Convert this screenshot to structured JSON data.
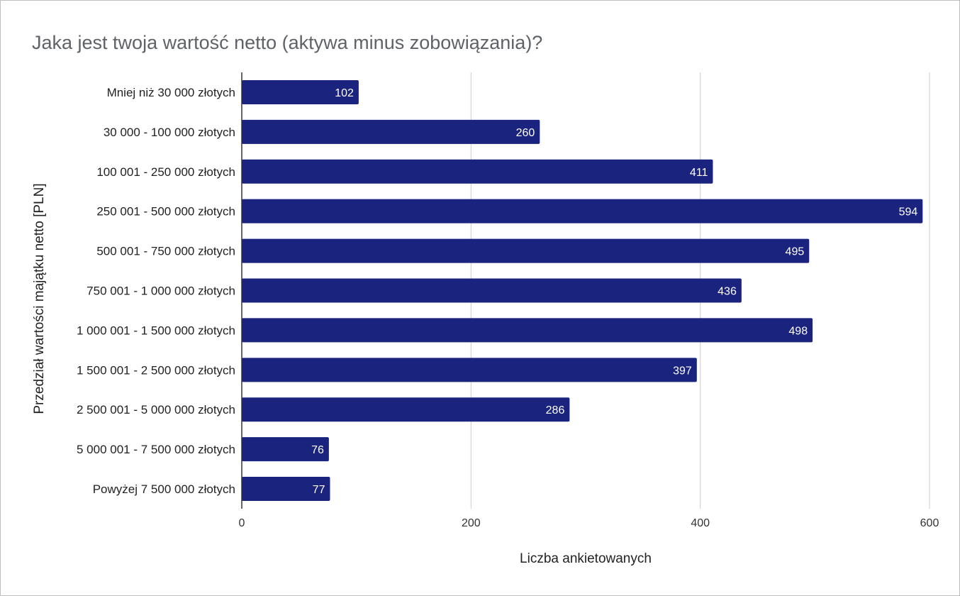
{
  "chart_data": {
    "type": "bar",
    "orientation": "horizontal",
    "title": "Jaka jest twoja wartość netto (aktywa minus zobowiązania)?",
    "xlabel": "Liczba ankietowanych",
    "ylabel": "Przedział wartości majątku netto [PLN]",
    "categories": [
      "Mniej niż 30 000 złotych",
      "30 000 - 100 000 złotych",
      "100 001 - 250 000 złotych",
      "250 001 - 500 000 złotych",
      "500 001 - 750 000 złotych",
      "750 001 - 1 000 000 złotych",
      "1 000 001 - 1 500 000 złotych",
      "1 500 001 - 2 500 000 złotych",
      "2 500 001 - 5 000 000 złotych",
      "5 000 001 - 7 500 000 złotych",
      "Powyżej 7 500 000 złotych"
    ],
    "values": [
      102,
      260,
      411,
      594,
      495,
      436,
      498,
      397,
      286,
      76,
      77
    ],
    "xlim": [
      0,
      600
    ],
    "xticks": [
      0,
      200,
      400,
      600
    ],
    "grid": true,
    "data_labels": true,
    "bar_color": "#1a237e"
  }
}
